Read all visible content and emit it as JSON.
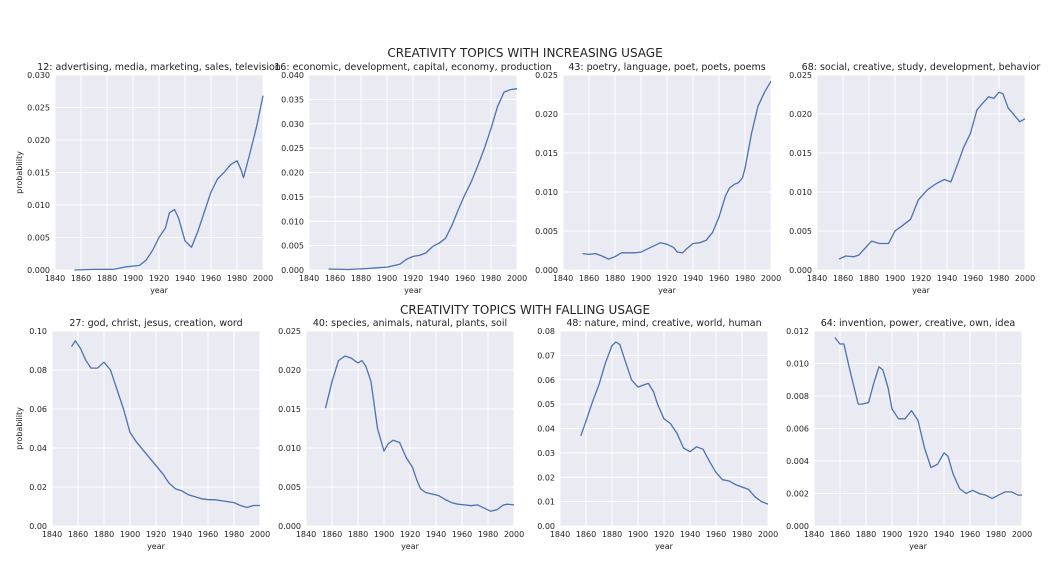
{
  "figure": {
    "top_title": "CREATIVITY TOPICS WITH INCREASING USAGE",
    "bottom_title": "CREATIVITY TOPICS WITH FALLING USAGE"
  },
  "style": {
    "line_color": "#4c72b0",
    "panel_bg": "#eaeaf2",
    "grid_color": "#ffffff"
  },
  "chart_data": [
    {
      "type": "line",
      "title": "12: advertising, media, marketing, sales, television",
      "xlabel": "year",
      "ylabel": "probability",
      "xlim": [
        1840,
        2000
      ],
      "ylim": [
        0,
        0.03
      ],
      "xticks": [
        1840,
        1860,
        1880,
        1900,
        1920,
        1940,
        1960,
        1980,
        2000
      ],
      "yticks": [
        "0.000",
        "0.005",
        "0.010",
        "0.015",
        "0.020",
        "0.025",
        "0.030"
      ],
      "grid": true,
      "x": [
        1855,
        1870,
        1885,
        1895,
        1905,
        1910,
        1915,
        1920,
        1925,
        1928,
        1932,
        1935,
        1940,
        1945,
        1950,
        1955,
        1960,
        1965,
        1970,
        1975,
        1980,
        1983,
        1985,
        1990,
        1995,
        2000
      ],
      "y": [
        0.0,
        0.0001,
        0.0001,
        0.0005,
        0.0007,
        0.0015,
        0.003,
        0.005,
        0.0065,
        0.0088,
        0.0093,
        0.008,
        0.0045,
        0.0035,
        0.006,
        0.009,
        0.012,
        0.014,
        0.015,
        0.0162,
        0.0168,
        0.0155,
        0.0142,
        0.018,
        0.022,
        0.0268
      ]
    },
    {
      "type": "line",
      "title": "16: economic, development, capital, economy, production",
      "xlabel": "year",
      "ylabel": "",
      "xlim": [
        1840,
        2000
      ],
      "ylim": [
        0,
        0.04
      ],
      "xticks": [
        1840,
        1860,
        1880,
        1900,
        1920,
        1940,
        1960,
        1980,
        2000
      ],
      "yticks": [
        "0.000",
        "0.005",
        "0.010",
        "0.015",
        "0.020",
        "0.025",
        "0.030",
        "0.035",
        "0.040"
      ],
      "grid": true,
      "x": [
        1855,
        1870,
        1885,
        1900,
        1910,
        1915,
        1920,
        1925,
        1930,
        1935,
        1940,
        1945,
        1950,
        1955,
        1960,
        1965,
        1970,
        1975,
        1980,
        1985,
        1990,
        1995,
        2000
      ],
      "y": [
        0.0002,
        0.0001,
        0.0003,
        0.0006,
        0.0012,
        0.0022,
        0.0028,
        0.003,
        0.0035,
        0.0048,
        0.0055,
        0.0065,
        0.0092,
        0.0125,
        0.0155,
        0.0182,
        0.0215,
        0.025,
        0.029,
        0.0335,
        0.0365,
        0.037,
        0.0372
      ]
    },
    {
      "type": "line",
      "title": "43: poetry, language, poet, poets, poems",
      "xlabel": "year",
      "ylabel": "",
      "xlim": [
        1840,
        2000
      ],
      "ylim": [
        0,
        0.025
      ],
      "xticks": [
        1840,
        1860,
        1880,
        1900,
        1920,
        1940,
        1960,
        1980,
        2000
      ],
      "yticks": [
        "0.000",
        "0.005",
        "0.010",
        "0.015",
        "0.020",
        "0.025"
      ],
      "grid": true,
      "x": [
        1855,
        1860,
        1865,
        1870,
        1875,
        1880,
        1885,
        1890,
        1895,
        1900,
        1905,
        1910,
        1915,
        1920,
        1925,
        1928,
        1932,
        1935,
        1940,
        1945,
        1950,
        1955,
        1960,
        1965,
        1968,
        1972,
        1975,
        1978,
        1980,
        1985,
        1990,
        1995,
        2000
      ],
      "y": [
        0.0021,
        0.002,
        0.0021,
        0.0018,
        0.0014,
        0.0017,
        0.0022,
        0.0022,
        0.0022,
        0.0023,
        0.0027,
        0.0031,
        0.0035,
        0.0033,
        0.0029,
        0.0023,
        0.0022,
        0.0027,
        0.0034,
        0.0035,
        0.0038,
        0.0048,
        0.0068,
        0.0095,
        0.0105,
        0.011,
        0.0112,
        0.0118,
        0.013,
        0.0175,
        0.021,
        0.0228,
        0.0242
      ]
    },
    {
      "type": "line",
      "title": "68: social, creative, study, development, behavior",
      "xlabel": "year",
      "ylabel": "",
      "xlim": [
        1840,
        2000
      ],
      "ylim": [
        0,
        0.025
      ],
      "xticks": [
        1840,
        1860,
        1880,
        1900,
        1920,
        1940,
        1960,
        1980,
        2000
      ],
      "yticks": [
        "0.000",
        "0.005",
        "0.010",
        "0.015",
        "0.020",
        "0.025"
      ],
      "grid": true,
      "x": [
        1857,
        1862,
        1868,
        1872,
        1877,
        1882,
        1888,
        1895,
        1900,
        1905,
        1912,
        1918,
        1925,
        1932,
        1938,
        1943,
        1948,
        1953,
        1958,
        1963,
        1967,
        1972,
        1976,
        1980,
        1983,
        1987,
        1992,
        1996,
        2000
      ],
      "y": [
        0.0014,
        0.0018,
        0.0017,
        0.0019,
        0.0028,
        0.0037,
        0.0034,
        0.0034,
        0.005,
        0.0056,
        0.0065,
        0.009,
        0.0103,
        0.0111,
        0.0116,
        0.0113,
        0.0135,
        0.0158,
        0.0175,
        0.0205,
        0.0213,
        0.0222,
        0.022,
        0.0228,
        0.0226,
        0.0208,
        0.0198,
        0.019,
        0.0194
      ]
    },
    {
      "type": "line",
      "title": "27: god, christ, jesus, creation, word",
      "xlabel": "year",
      "ylabel": "probability",
      "xlim": [
        1840,
        2000
      ],
      "ylim": [
        0,
        0.1
      ],
      "xticks": [
        1840,
        1860,
        1880,
        1900,
        1920,
        1940,
        1960,
        1980,
        2000
      ],
      "yticks": [
        "0.00",
        "0.02",
        "0.04",
        "0.06",
        "0.08",
        "0.10"
      ],
      "grid": true,
      "x": [
        1855,
        1858,
        1862,
        1866,
        1870,
        1875,
        1880,
        1885,
        1890,
        1895,
        1900,
        1905,
        1910,
        1915,
        1920,
        1925,
        1930,
        1935,
        1940,
        1945,
        1950,
        1955,
        1960,
        1965,
        1970,
        1975,
        1980,
        1985,
        1990,
        1995,
        2000
      ],
      "y": [
        0.092,
        0.095,
        0.091,
        0.085,
        0.081,
        0.081,
        0.084,
        0.08,
        0.07,
        0.06,
        0.048,
        0.043,
        0.039,
        0.035,
        0.031,
        0.027,
        0.022,
        0.019,
        0.018,
        0.016,
        0.015,
        0.014,
        0.0135,
        0.0135,
        0.013,
        0.0125,
        0.012,
        0.0105,
        0.0095,
        0.0105,
        0.0105
      ]
    },
    {
      "type": "line",
      "title": "40: species, animals, natural, plants, soil",
      "xlabel": "year",
      "ylabel": "",
      "xlim": [
        1840,
        2000
      ],
      "ylim": [
        0,
        0.025
      ],
      "xticks": [
        1840,
        1860,
        1880,
        1900,
        1920,
        1940,
        1960,
        1980,
        2000
      ],
      "yticks": [
        "0.000",
        "0.005",
        "0.010",
        "0.015",
        "0.020",
        "0.025"
      ],
      "grid": true,
      "x": [
        1855,
        1860,
        1865,
        1870,
        1875,
        1880,
        1883,
        1886,
        1890,
        1895,
        1900,
        1903,
        1907,
        1912,
        1917,
        1922,
        1925,
        1928,
        1932,
        1937,
        1942,
        1947,
        1952,
        1957,
        1962,
        1967,
        1972,
        1977,
        1982,
        1987,
        1992,
        1995,
        2000
      ],
      "y": [
        0.0151,
        0.0185,
        0.0212,
        0.0218,
        0.0215,
        0.0209,
        0.0212,
        0.0205,
        0.0185,
        0.0125,
        0.0096,
        0.0105,
        0.011,
        0.0107,
        0.0088,
        0.0075,
        0.006,
        0.0048,
        0.0043,
        0.0041,
        0.0039,
        0.0034,
        0.003,
        0.0028,
        0.0027,
        0.0026,
        0.0027,
        0.0023,
        0.0019,
        0.0021,
        0.0027,
        0.0028,
        0.0027
      ]
    },
    {
      "type": "line",
      "title": "48: nature, mind, creative, world, human",
      "xlabel": "year",
      "ylabel": "",
      "xlim": [
        1840,
        2000
      ],
      "ylim": [
        0,
        0.08
      ],
      "xticks": [
        1840,
        1860,
        1880,
        1900,
        1920,
        1940,
        1960,
        1980,
        2000
      ],
      "yticks": [
        "0.00",
        "0.01",
        "0.02",
        "0.03",
        "0.04",
        "0.05",
        "0.06",
        "0.07",
        "0.08"
      ],
      "grid": true,
      "x": [
        1856,
        1860,
        1865,
        1870,
        1875,
        1880,
        1883,
        1886,
        1890,
        1895,
        1900,
        1905,
        1908,
        1912,
        1915,
        1920,
        1925,
        1930,
        1935,
        1940,
        1945,
        1950,
        1955,
        1960,
        1965,
        1970,
        1975,
        1980,
        1985,
        1990,
        1995,
        2000
      ],
      "y": [
        0.037,
        0.043,
        0.051,
        0.058,
        0.067,
        0.074,
        0.0755,
        0.0745,
        0.068,
        0.06,
        0.057,
        0.058,
        0.0585,
        0.055,
        0.05,
        0.044,
        0.042,
        0.038,
        0.032,
        0.0305,
        0.0325,
        0.0315,
        0.0265,
        0.022,
        0.019,
        0.0185,
        0.017,
        0.016,
        0.015,
        0.012,
        0.01,
        0.009
      ]
    },
    {
      "type": "line",
      "title": "64: invention, power, creative, own, idea",
      "xlabel": "year",
      "ylabel": "",
      "xlim": [
        1840,
        2000
      ],
      "ylim": [
        0,
        0.012
      ],
      "xticks": [
        1840,
        1860,
        1880,
        1900,
        1920,
        1940,
        1960,
        1980,
        2000
      ],
      "yticks": [
        "0.000",
        "0.002",
        "0.004",
        "0.006",
        "0.008",
        "0.010",
        "0.012"
      ],
      "grid": true,
      "x": [
        1856,
        1860,
        1863,
        1867,
        1870,
        1874,
        1877,
        1882,
        1886,
        1890,
        1893,
        1897,
        1900,
        1905,
        1910,
        1915,
        1920,
        1925,
        1930,
        1935,
        1940,
        1943,
        1947,
        1952,
        1957,
        1962,
        1967,
        1972,
        1977,
        1982,
        1987,
        1992,
        1997,
        2000
      ],
      "y": [
        0.0116,
        0.0112,
        0.0112,
        0.0098,
        0.0088,
        0.0075,
        0.0075,
        0.0076,
        0.0088,
        0.0098,
        0.0096,
        0.0085,
        0.0072,
        0.0066,
        0.0066,
        0.0071,
        0.0065,
        0.0048,
        0.0036,
        0.0038,
        0.0045,
        0.0043,
        0.0032,
        0.0023,
        0.002,
        0.0022,
        0.002,
        0.0019,
        0.0017,
        0.0019,
        0.0021,
        0.0021,
        0.0019,
        0.0019
      ]
    }
  ]
}
